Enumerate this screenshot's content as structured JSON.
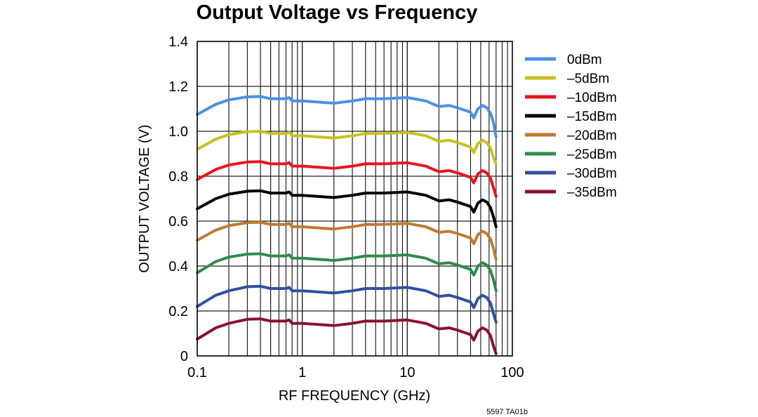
{
  "chart_data": {
    "type": "line",
    "title": "Output Voltage vs Frequency",
    "xlabel": "RF FREQUENCY (GHz)",
    "ylabel": "OUTPUT VOLTAGE (V)",
    "x_scale": "log",
    "xlim": [
      0.1,
      100
    ],
    "ylim": [
      0,
      1.4
    ],
    "x_ticks": [
      "0.1",
      "1",
      "10",
      "100"
    ],
    "y_ticks": [
      "0",
      "0.2",
      "0.4",
      "0.6",
      "0.8",
      "1.0",
      "1.2",
      "1.4"
    ],
    "grid": true,
    "legend_position": "right",
    "footnote": "5597 TA01b",
    "x": [
      0.1,
      0.15,
      0.2,
      0.3,
      0.4,
      0.5,
      0.7,
      0.75,
      0.8,
      1,
      2,
      3,
      4,
      6,
      10,
      15,
      20,
      25,
      30,
      40,
      43,
      47,
      52,
      57,
      62,
      66,
      70
    ],
    "series": [
      {
        "name": "0dBm",
        "color": "#4a90e8",
        "values": [
          1.075,
          1.12,
          1.14,
          1.153,
          1.155,
          1.145,
          1.145,
          1.15,
          1.135,
          1.135,
          1.125,
          1.135,
          1.145,
          1.145,
          1.15,
          1.135,
          1.11,
          1.115,
          1.105,
          1.085,
          1.06,
          1.1,
          1.115,
          1.105,
          1.08,
          1.04,
          0.975
        ]
      },
      {
        "name": "–5dBm",
        "color": "#c8c020",
        "values": [
          0.92,
          0.965,
          0.985,
          0.998,
          1.0,
          0.99,
          0.99,
          0.995,
          0.98,
          0.98,
          0.97,
          0.98,
          0.99,
          0.99,
          0.995,
          0.98,
          0.955,
          0.96,
          0.95,
          0.93,
          0.905,
          0.945,
          0.96,
          0.95,
          0.925,
          0.885,
          0.855
        ]
      },
      {
        "name": "–10dBm",
        "color": "#e8141e",
        "values": [
          0.785,
          0.83,
          0.85,
          0.863,
          0.865,
          0.855,
          0.855,
          0.86,
          0.845,
          0.845,
          0.835,
          0.845,
          0.855,
          0.855,
          0.86,
          0.845,
          0.82,
          0.825,
          0.815,
          0.795,
          0.77,
          0.81,
          0.825,
          0.815,
          0.79,
          0.75,
          0.71
        ]
      },
      {
        "name": "–15dBm",
        "color": "#000000",
        "values": [
          0.655,
          0.7,
          0.72,
          0.733,
          0.735,
          0.725,
          0.725,
          0.73,
          0.715,
          0.715,
          0.705,
          0.715,
          0.725,
          0.725,
          0.73,
          0.715,
          0.69,
          0.695,
          0.685,
          0.665,
          0.64,
          0.68,
          0.695,
          0.685,
          0.66,
          0.62,
          0.575
        ]
      },
      {
        "name": "–20dBm",
        "color": "#c07a30",
        "values": [
          0.515,
          0.56,
          0.58,
          0.593,
          0.595,
          0.585,
          0.585,
          0.59,
          0.575,
          0.575,
          0.565,
          0.575,
          0.585,
          0.585,
          0.59,
          0.575,
          0.55,
          0.555,
          0.545,
          0.525,
          0.5,
          0.54,
          0.555,
          0.545,
          0.52,
          0.48,
          0.43
        ]
      },
      {
        "name": "–25dBm",
        "color": "#2e8b4a",
        "values": [
          0.37,
          0.42,
          0.44,
          0.453,
          0.455,
          0.445,
          0.445,
          0.45,
          0.435,
          0.435,
          0.425,
          0.435,
          0.445,
          0.445,
          0.45,
          0.435,
          0.41,
          0.415,
          0.405,
          0.385,
          0.36,
          0.4,
          0.415,
          0.405,
          0.38,
          0.34,
          0.29
        ]
      },
      {
        "name": "–30dBm",
        "color": "#2f4fa0",
        "values": [
          0.22,
          0.27,
          0.29,
          0.308,
          0.31,
          0.3,
          0.3,
          0.305,
          0.29,
          0.29,
          0.28,
          0.29,
          0.3,
          0.3,
          0.305,
          0.29,
          0.265,
          0.27,
          0.26,
          0.24,
          0.215,
          0.255,
          0.27,
          0.26,
          0.235,
          0.19,
          0.15
        ]
      },
      {
        "name": "–35dBm",
        "color": "#8b1030",
        "values": [
          0.075,
          0.125,
          0.145,
          0.163,
          0.165,
          0.155,
          0.155,
          0.16,
          0.145,
          0.145,
          0.135,
          0.145,
          0.155,
          0.155,
          0.16,
          0.145,
          0.12,
          0.125,
          0.115,
          0.095,
          0.07,
          0.11,
          0.125,
          0.115,
          0.09,
          0.045,
          0.01
        ]
      }
    ]
  }
}
